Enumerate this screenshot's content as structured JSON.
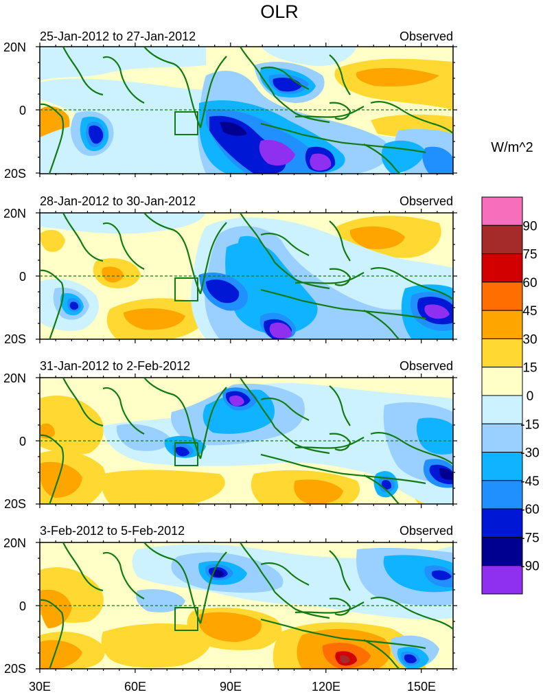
{
  "figure": {
    "title": "OLR",
    "units": "W/m^2"
  },
  "axes": {
    "lat_ticks": [
      "20N",
      "0",
      "20S"
    ],
    "lon_ticks": [
      "30E",
      "60E",
      "90E",
      "120E",
      "150E"
    ]
  },
  "panels": [
    {
      "date_range": "25-Jan-2012 to 27-Jan-2012",
      "label": "Observed"
    },
    {
      "date_range": "28-Jan-2012 to 30-Jan-2012",
      "label": "Observed"
    },
    {
      "date_range": "31-Jan-2012 to 2-Feb-2012",
      "label": "Observed"
    },
    {
      "date_range": "3-Feb-2012 to 5-Feb-2012",
      "label": "Observed"
    }
  ],
  "colorbar": {
    "levels": [
      "90",
      "75",
      "60",
      "45",
      "30",
      "15",
      "0",
      "-15",
      "-30",
      "-45",
      "-60",
      "-75",
      "-90"
    ],
    "colors": [
      "#f76ebd",
      "#a52a2a",
      "#d20000",
      "#ff6e00",
      "#ffa500",
      "#ffd932",
      "#ffffc8",
      "#ccf2ff",
      "#99d0ff",
      "#0fb3ff",
      "#2190ff",
      "#0018d6",
      "#000090",
      "#8f2ff0"
    ]
  },
  "colors": {
    "coastline": "#117a11",
    "equator": "#117a11"
  }
}
